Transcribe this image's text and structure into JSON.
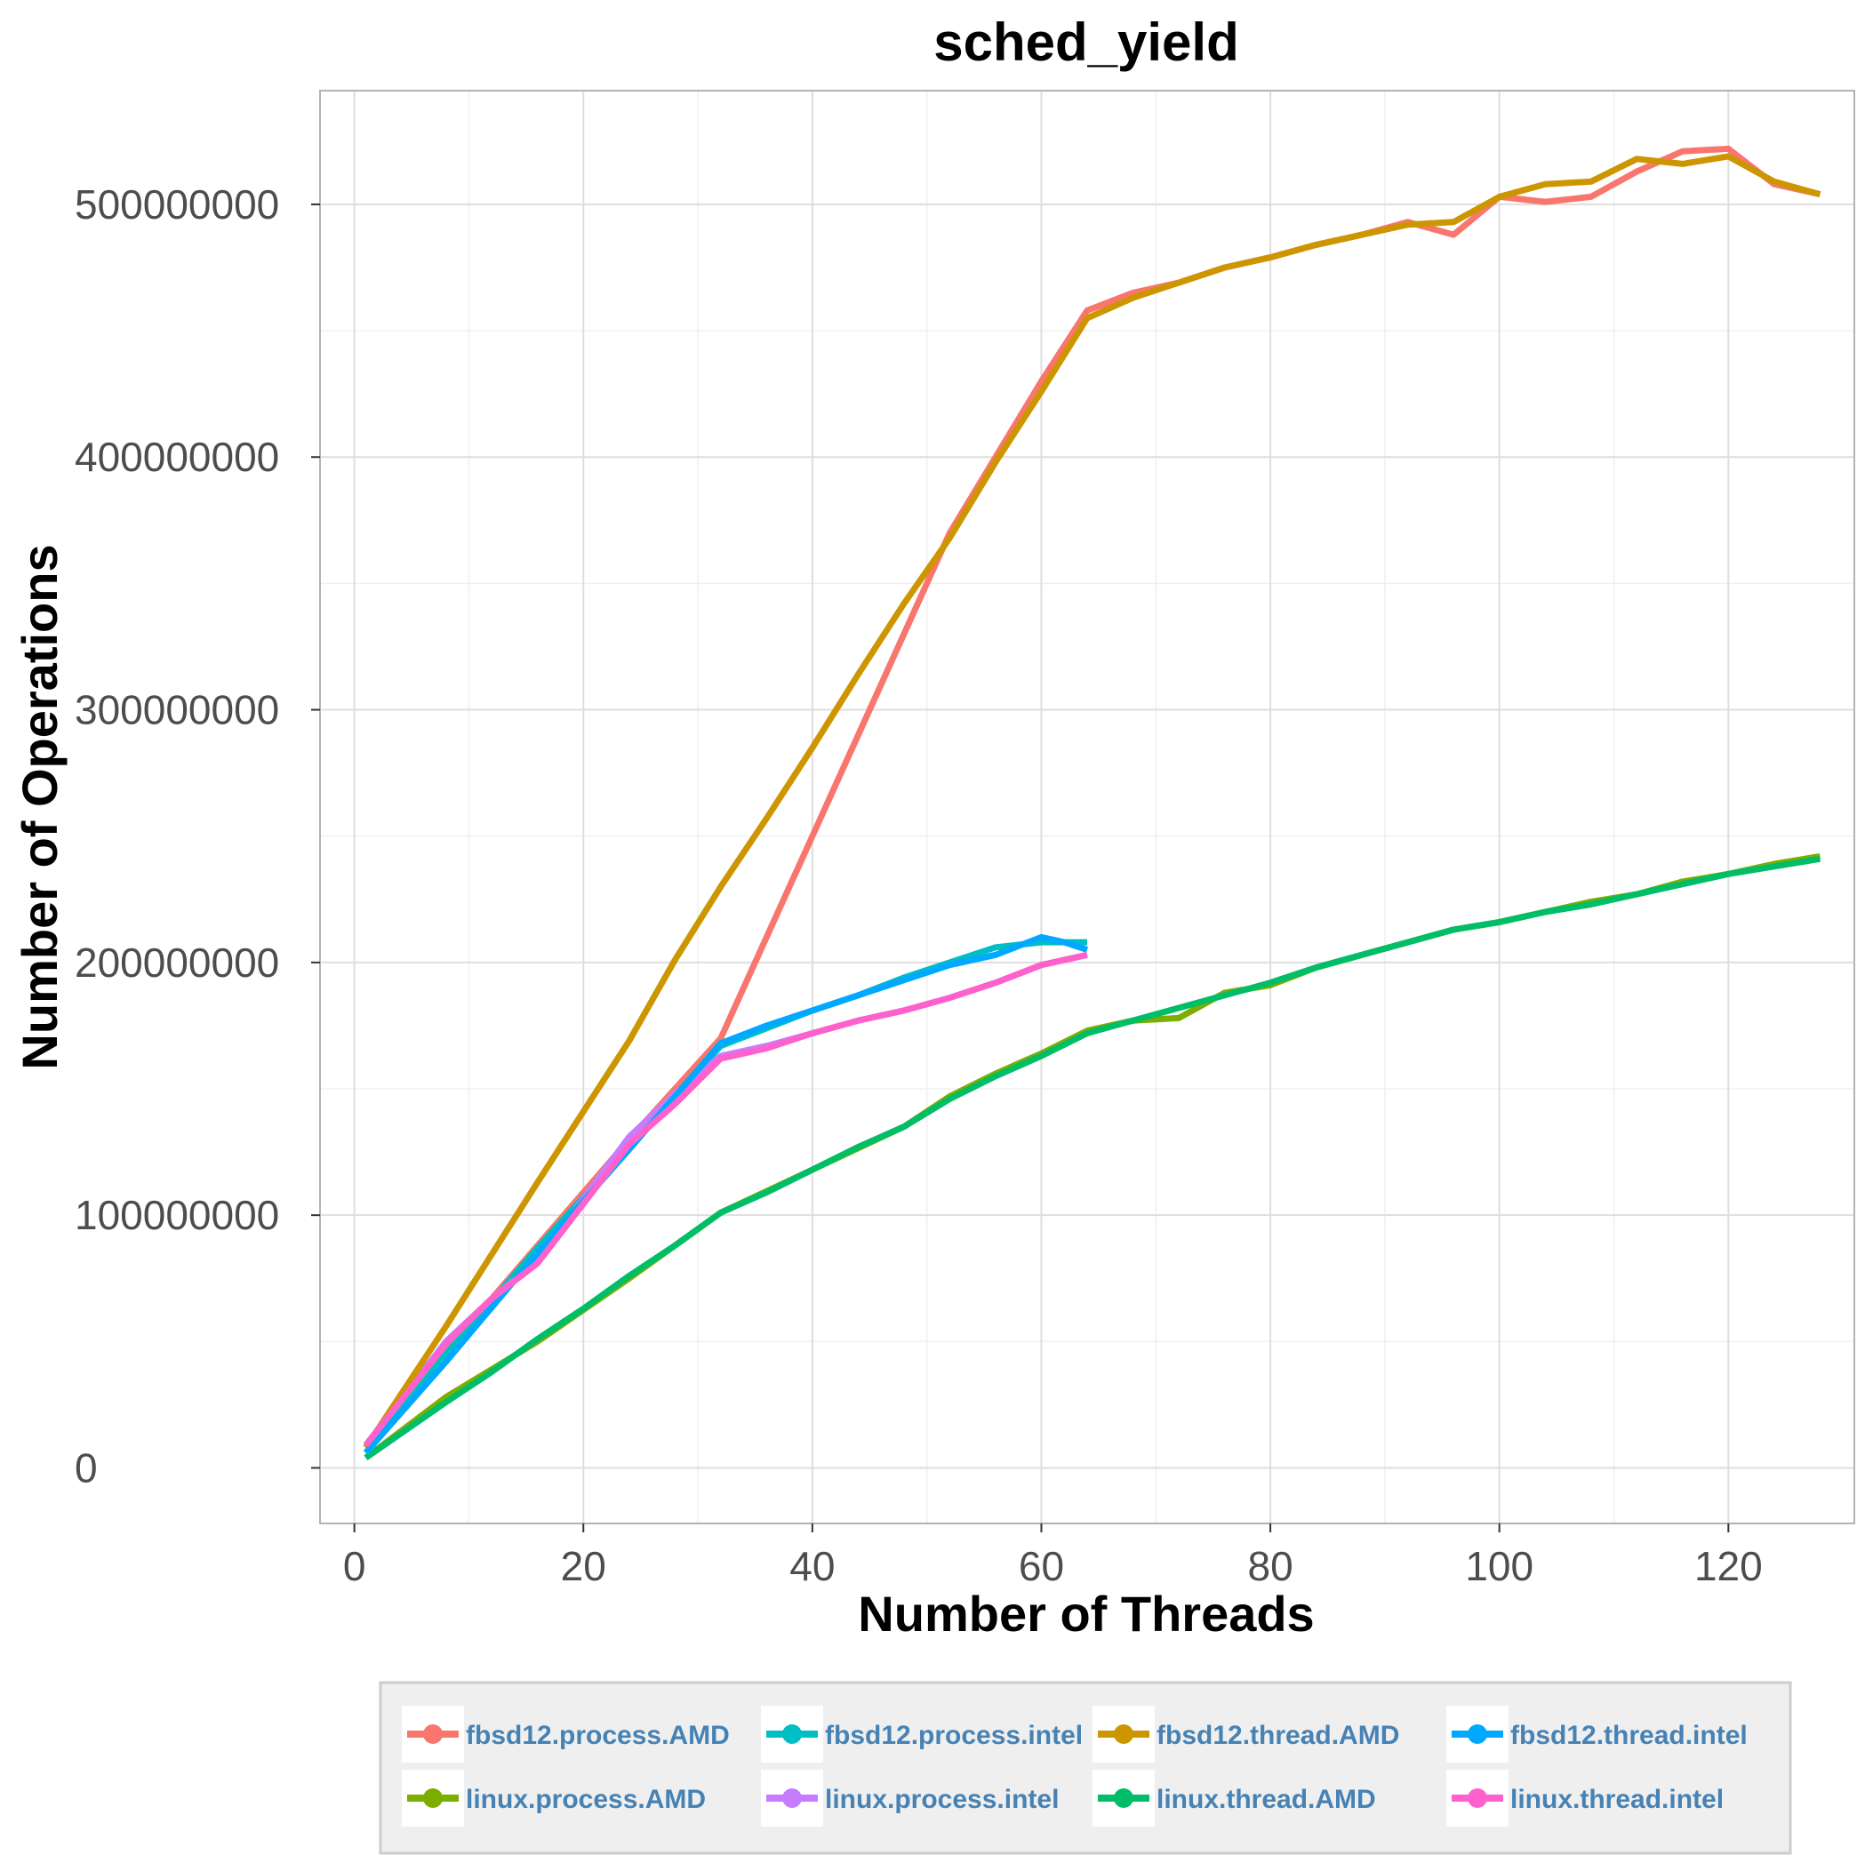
{
  "chart_data": {
    "type": "line",
    "title": "sched_yield",
    "xlabel": "Number of Threads",
    "ylabel": "Number of Operations",
    "xlim": [
      -3,
      131
    ],
    "ylim": [
      -22000000,
      545000000
    ],
    "x_ticks": [
      0,
      20,
      40,
      60,
      80,
      100,
      120
    ],
    "y_ticks": [
      0,
      100000000,
      200000000,
      300000000,
      400000000,
      500000000
    ],
    "x_tick_labels": [
      "0",
      "20",
      "40",
      "60",
      "80",
      "100",
      "120"
    ],
    "y_tick_labels": [
      "0",
      "100000000",
      "200000000",
      "300000000",
      "400000000",
      "500000000"
    ],
    "grid": true,
    "legend_position": "bottom",
    "series": [
      {
        "name": "fbsd12.process.AMD",
        "color": "#F8766D",
        "x": [
          1,
          8,
          16,
          24,
          28,
          32,
          36,
          40,
          44,
          48,
          52,
          56,
          60,
          64,
          68,
          72,
          76,
          80,
          84,
          88,
          92,
          96,
          100,
          104,
          108,
          112,
          116,
          120,
          124,
          128
        ],
        "y": [
          8000000,
          46000000,
          88000000,
          130000000,
          150000000,
          170000000,
          210000000,
          250000000,
          290000000,
          330000000,
          370000000,
          400000000,
          430000000,
          458000000,
          465000000,
          469000000,
          475000000,
          479000000,
          484000000,
          488000000,
          493000000,
          488000000,
          503000000,
          501000000,
          503000000,
          513000000,
          521000000,
          522000000,
          508000000,
          504000000
        ]
      },
      {
        "name": "linux.process.AMD",
        "color": "#7CAE00",
        "x": [
          1,
          8,
          16,
          24,
          32,
          40,
          48,
          52,
          56,
          60,
          64,
          68,
          72,
          76,
          80,
          84,
          88,
          92,
          96,
          100,
          104,
          108,
          112,
          116,
          120,
          124,
          128
        ],
        "y": [
          4000000,
          28000000,
          50000000,
          75000000,
          101000000,
          118000000,
          135000000,
          147000000,
          156000000,
          164000000,
          173000000,
          177000000,
          178000000,
          188000000,
          191000000,
          198000000,
          203000000,
          208000000,
          213000000,
          216000000,
          220000000,
          224000000,
          227000000,
          232000000,
          235000000,
          239000000,
          242000000
        ]
      },
      {
        "name": "fbsd12.process.intel",
        "color": "#00BFC4",
        "x": [
          1,
          8,
          16,
          24,
          32,
          36,
          40,
          44,
          48,
          52,
          56,
          60,
          64
        ],
        "y": [
          6000000,
          45000000,
          87000000,
          127000000,
          167000000,
          174000000,
          181000000,
          187000000,
          194000000,
          200000000,
          206000000,
          208000000,
          208000000
        ]
      },
      {
        "name": "linux.process.intel",
        "color": "#C77CFF",
        "x": [
          1,
          8,
          12,
          16,
          24,
          28,
          32,
          36,
          40,
          44,
          48,
          52,
          56,
          60,
          64
        ],
        "y": [
          9000000,
          50000000,
          67000000,
          82000000,
          131000000,
          148000000,
          163000000,
          167000000,
          172000000,
          177000000,
          181000000,
          186000000,
          192000000,
          199000000,
          203000000
        ]
      },
      {
        "name": "fbsd12.thread.AMD",
        "color": "#CD9600",
        "x": [
          1,
          8,
          16,
          24,
          28,
          32,
          36,
          40,
          44,
          48,
          52,
          56,
          60,
          64,
          68,
          72,
          76,
          80,
          84,
          88,
          92,
          96,
          100,
          104,
          108,
          112,
          116,
          120,
          124,
          128
        ],
        "y": [
          8000000,
          56000000,
          113000000,
          169000000,
          201000000,
          230000000,
          257000000,
          285000000,
          314000000,
          342000000,
          368000000,
          398000000,
          426000000,
          455000000,
          463000000,
          469000000,
          475000000,
          479000000,
          484000000,
          488000000,
          492000000,
          493000000,
          503000000,
          508000000,
          509000000,
          518000000,
          516000000,
          519000000,
          509000000,
          504000000
        ]
      },
      {
        "name": "linux.thread.AMD",
        "color": "#00BE67",
        "x": [
          1,
          8,
          12,
          16,
          20,
          24,
          28,
          32,
          36,
          40,
          44,
          48,
          52,
          56,
          60,
          64,
          68,
          72,
          76,
          80,
          84,
          88,
          92,
          96,
          100,
          104,
          108,
          112,
          116,
          120,
          124,
          128
        ],
        "y": [
          4000000,
          26000000,
          38000000,
          51000000,
          63000000,
          76000000,
          88000000,
          101000000,
          109000000,
          118000000,
          127000000,
          135000000,
          146000000,
          155000000,
          163000000,
          172000000,
          177000000,
          182000000,
          187000000,
          192000000,
          198000000,
          203000000,
          208000000,
          213000000,
          216000000,
          220000000,
          223000000,
          227000000,
          231000000,
          235000000,
          238000000,
          241000000
        ]
      },
      {
        "name": "fbsd12.thread.intel",
        "color": "#00A9FF",
        "x": [
          1,
          8,
          16,
          24,
          32,
          36,
          40,
          44,
          48,
          52,
          56,
          60,
          62,
          64
        ],
        "y": [
          6000000,
          42000000,
          85000000,
          126000000,
          168000000,
          175000000,
          181000000,
          187000000,
          193000000,
          199000000,
          203000000,
          210000000,
          208000000,
          205000000
        ]
      },
      {
        "name": "linux.thread.intel",
        "color": "#FF61CC",
        "x": [
          1,
          8,
          12,
          16,
          24,
          28,
          32,
          36,
          40,
          44,
          48,
          52,
          56,
          60,
          64
        ],
        "y": [
          9000000,
          49000000,
          67000000,
          81000000,
          128000000,
          144000000,
          162000000,
          166000000,
          172000000,
          177000000,
          181000000,
          186000000,
          192000000,
          199000000,
          203000000
        ]
      }
    ]
  }
}
